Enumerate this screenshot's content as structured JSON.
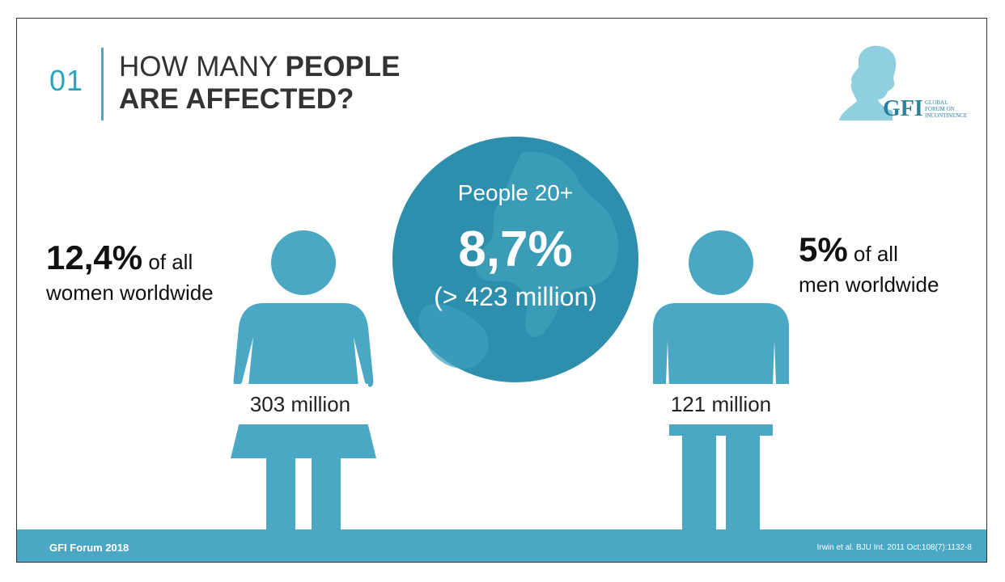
{
  "header": {
    "number": "01",
    "title_line1_regular": "HOW MANY ",
    "title_line1_bold": "PEOPLE",
    "title_line2_bold": "ARE AFFECTED?"
  },
  "logo": {
    "abbr": "GFI",
    "line1": "GLOBAL",
    "line2": "FORUM ON",
    "line3": "INCONTINENCE"
  },
  "globe": {
    "label": "People 20+",
    "percent": "8,7%",
    "count": "(> 423 million)"
  },
  "women": {
    "percent": "12,4%",
    "suffix": " of all",
    "line2": "women worldwide",
    "count": "303 million"
  },
  "men": {
    "percent": "5%",
    "suffix": " of all",
    "line2": "men worldwide",
    "count": "121 million"
  },
  "footer": {
    "left": "GFI Forum 2018",
    "right": "Irwin et al. BJU Int. 2011 Oct;108(7):1132-8"
  },
  "colors": {
    "accent": "#4aa8c4",
    "globe": "#2d8fac",
    "land": "#3f9fbc"
  }
}
